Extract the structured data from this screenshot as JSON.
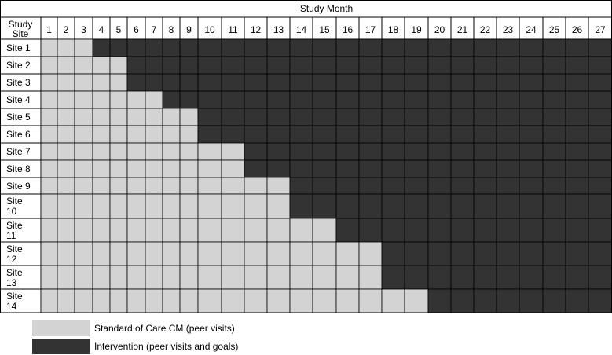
{
  "header": {
    "title": "Study Month",
    "corner_label": "Study Site"
  },
  "months": [
    "1",
    "2",
    "3",
    "4",
    "5",
    "6",
    "7",
    "8",
    "9",
    "10",
    "11",
    "12",
    "13",
    "14",
    "15",
    "16",
    "17",
    "18",
    "19",
    "20",
    "21",
    "22",
    "23",
    "24",
    "25",
    "26",
    "27"
  ],
  "sites": [
    {
      "label": "Site 1",
      "switch_month": 4
    },
    {
      "label": "Site 2",
      "switch_month": 6
    },
    {
      "label": "Site 3",
      "switch_month": 6
    },
    {
      "label": "Site 4",
      "switch_month": 8
    },
    {
      "label": "Site 5",
      "switch_month": 10
    },
    {
      "label": "Site 6",
      "switch_month": 10
    },
    {
      "label": "Site 7",
      "switch_month": 12
    },
    {
      "label": "Site 8",
      "switch_month": 12
    },
    {
      "label": "Site 9",
      "switch_month": 14
    },
    {
      "label": "Site 10",
      "switch_month": 14
    },
    {
      "label": "Site 11",
      "switch_month": 16
    },
    {
      "label": "Site 12",
      "switch_month": 18
    },
    {
      "label": "Site 13",
      "switch_month": 18
    },
    {
      "label": "Site 14",
      "switch_month": 20
    }
  ],
  "legend": [
    {
      "key": "standard",
      "label": "Standard of Care CM (peer visits)",
      "color": "#d3d3d3"
    },
    {
      "key": "intervention",
      "label": "Intervention (peer visits and goals)",
      "color": "#333333"
    }
  ],
  "colors": {
    "standard": "#d3d3d3",
    "intervention": "#333333",
    "border": "#000000",
    "header_bg": "#ffffff"
  }
}
